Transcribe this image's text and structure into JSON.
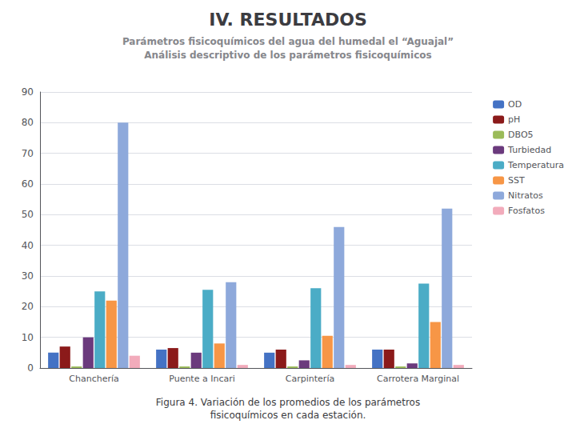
{
  "chart_data": {
    "type": "bar",
    "title": "IV. RESULTADOS",
    "subtitle": "Parámetros fisicoquímicos del agua del humedal el “Aguajal”\nAnálisis descriptivo de los parámetros fisicoquímicos",
    "caption": "Figura 4. Variación de los promedios de los parámetros\nfisicoquímicos en cada estación.",
    "categories": [
      "Chanchería",
      "Puente a Incari",
      "Carpintería",
      "Carrotera Marginal"
    ],
    "series": [
      {
        "name": "OD",
        "color": "#4472C4",
        "values": [
          5.0,
          6.0,
          5.0,
          6.0
        ]
      },
      {
        "name": "pH",
        "color": "#8B1A1A",
        "values": [
          7.0,
          6.5,
          6.0,
          6.0
        ]
      },
      {
        "name": "DBO5",
        "color": "#9BBB59",
        "values": [
          0.5,
          0.5,
          0.5,
          0.5
        ]
      },
      {
        "name": "Turbiedad",
        "color": "#6B3A7D",
        "values": [
          10.0,
          5.0,
          2.5,
          1.5
        ]
      },
      {
        "name": "Temperatura",
        "color": "#4BACC6",
        "values": [
          25.0,
          25.5,
          26.0,
          27.5
        ]
      },
      {
        "name": "SST",
        "color": "#F79646",
        "values": [
          22.0,
          8.0,
          10.5,
          15.0
        ]
      },
      {
        "name": "Nitratos",
        "color": "#8EA9DB",
        "values": [
          80.0,
          28.0,
          46.0,
          52.0
        ]
      },
      {
        "name": "Fosfatos",
        "color": "#F2ABBB",
        "values": [
          4.0,
          1.0,
          1.0,
          1.0
        ]
      }
    ],
    "ylim": [
      0,
      90
    ],
    "yticks": [
      0,
      10,
      20,
      30,
      40,
      50,
      60,
      70,
      80,
      90
    ],
    "grid": true,
    "legend": "right"
  }
}
